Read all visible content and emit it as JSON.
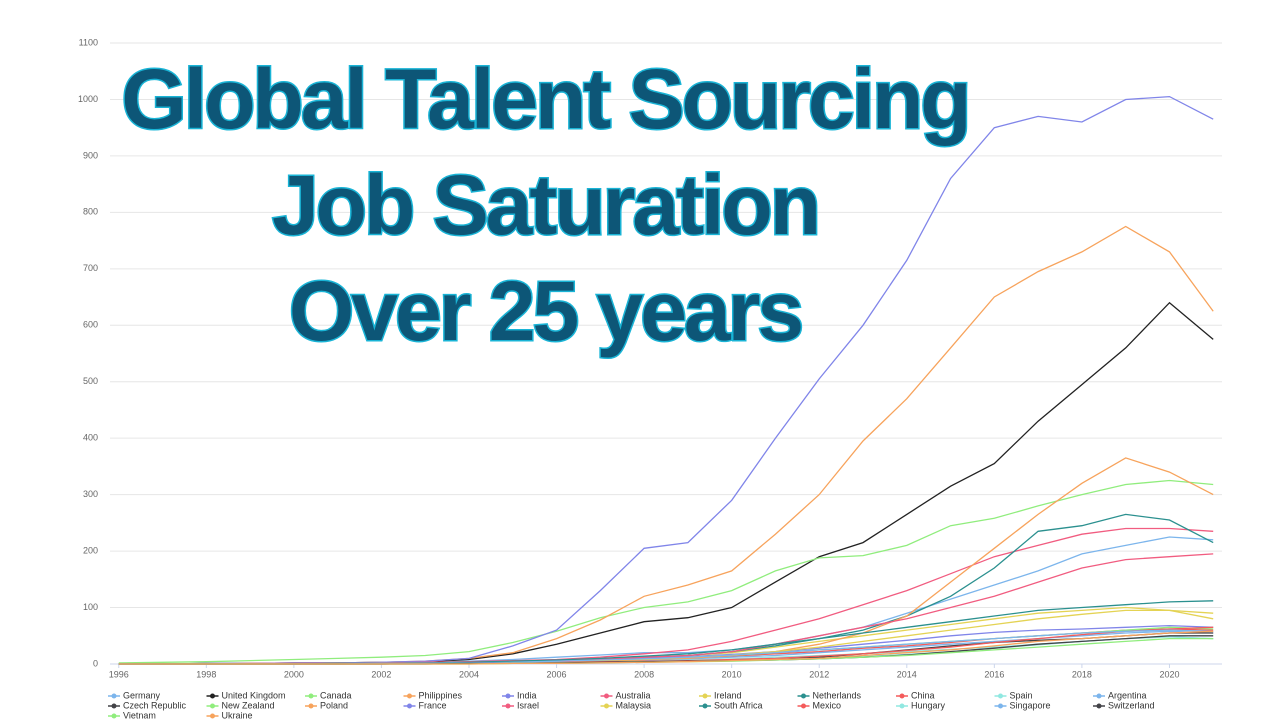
{
  "chart_data": {
    "type": "line",
    "title_lines": [
      "Global Talent Sourcing",
      "Job Saturation",
      "Over 25 years"
    ],
    "x": [
      1996,
      1997,
      1998,
      1999,
      2000,
      2001,
      2002,
      2003,
      2004,
      2005,
      2006,
      2007,
      2008,
      2009,
      2010,
      2011,
      2012,
      2013,
      2014,
      2015,
      2016,
      2017,
      2018,
      2019,
      2020,
      2021
    ],
    "xlim": [
      1995.8,
      2021.2
    ],
    "xticks": [
      1996,
      1998,
      2000,
      2002,
      2004,
      2006,
      2008,
      2010,
      2012,
      2014,
      2016,
      2018,
      2020
    ],
    "ylim": [
      0,
      1100
    ],
    "yticks": [
      0,
      100,
      200,
      300,
      400,
      500,
      600,
      700,
      800,
      900,
      1000,
      1100
    ],
    "grid": true,
    "series": [
      {
        "name": "Germany",
        "color": "#7cb5ec",
        "values": [
          0,
          0,
          0,
          0,
          1,
          1,
          2,
          3,
          5,
          8,
          12,
          16,
          20,
          20,
          25,
          35,
          50,
          65,
          90,
          115,
          140,
          165,
          195,
          210,
          225,
          220
        ]
      },
      {
        "name": "United Kingdom",
        "color": "#222222",
        "values": [
          0,
          0,
          1,
          1,
          2,
          2,
          3,
          4,
          8,
          18,
          35,
          55,
          75,
          82,
          100,
          145,
          190,
          215,
          265,
          315,
          355,
          430,
          495,
          560,
          640,
          575
        ]
      },
      {
        "name": "Canada",
        "color": "#90ed7d",
        "values": [
          2,
          3,
          4,
          6,
          8,
          10,
          12,
          15,
          22,
          38,
          58,
          82,
          100,
          110,
          130,
          165,
          188,
          192,
          210,
          245,
          258,
          280,
          300,
          318,
          325,
          318
        ]
      },
      {
        "name": "Philippines",
        "color": "#f7a35c",
        "values": [
          0,
          0,
          0,
          1,
          1,
          2,
          3,
          5,
          10,
          20,
          45,
          78,
          120,
          140,
          165,
          230,
          300,
          395,
          470,
          560,
          650,
          695,
          730,
          775,
          730,
          625
        ]
      },
      {
        "name": "India",
        "color": "#8085e9",
        "values": [
          0,
          0,
          1,
          1,
          2,
          2,
          3,
          5,
          10,
          32,
          60,
          130,
          205,
          215,
          290,
          400,
          505,
          600,
          715,
          860,
          950,
          970,
          960,
          1000,
          1005,
          965
        ]
      },
      {
        "name": "Australia",
        "color": "#f15c80",
        "values": [
          0,
          0,
          0,
          1,
          1,
          1,
          2,
          3,
          4,
          6,
          8,
          12,
          18,
          25,
          40,
          60,
          80,
          105,
          130,
          160,
          190,
          210,
          230,
          240,
          240,
          235
        ]
      },
      {
        "name": "Ireland",
        "color": "#e4d354",
        "values": [
          0,
          0,
          0,
          0,
          0,
          1,
          1,
          2,
          3,
          4,
          6,
          8,
          10,
          15,
          20,
          30,
          40,
          50,
          60,
          70,
          80,
          90,
          95,
          100,
          95,
          80
        ]
      },
      {
        "name": "Netherlands",
        "color": "#2b908f",
        "values": [
          0,
          0,
          0,
          0,
          0,
          1,
          1,
          2,
          3,
          4,
          6,
          8,
          12,
          15,
          22,
          32,
          45,
          60,
          85,
          120,
          170,
          235,
          245,
          265,
          255,
          215
        ]
      },
      {
        "name": "China",
        "color": "#f45b5b",
        "values": [
          0,
          0,
          0,
          0,
          0,
          0,
          1,
          1,
          2,
          3,
          4,
          5,
          7,
          10,
          14,
          18,
          22,
          28,
          32,
          38,
          45,
          50,
          55,
          60,
          62,
          60
        ]
      },
      {
        "name": "Spain",
        "color": "#91e8e1",
        "values": [
          0,
          0,
          0,
          0,
          0,
          0,
          0,
          1,
          1,
          2,
          3,
          4,
          5,
          7,
          9,
          12,
          15,
          18,
          22,
          26,
          30,
          35,
          40,
          45,
          48,
          45
        ]
      },
      {
        "name": "Argentina",
        "color": "#7cb5ec",
        "values": [
          0,
          0,
          0,
          0,
          0,
          0,
          1,
          1,
          2,
          3,
          4,
          5,
          7,
          9,
          12,
          15,
          20,
          25,
          30,
          35,
          40,
          45,
          50,
          55,
          58,
          55
        ]
      },
      {
        "name": "Czech Republic",
        "color": "#434348",
        "values": [
          0,
          0,
          0,
          0,
          0,
          0,
          0,
          1,
          1,
          1,
          2,
          3,
          4,
          5,
          6,
          8,
          12,
          18,
          25,
          32,
          38,
          42,
          45,
          50,
          55,
          55
        ]
      },
      {
        "name": "New Zealand",
        "color": "#90ed7d",
        "values": [
          0,
          0,
          0,
          0,
          0,
          1,
          1,
          2,
          3,
          4,
          5,
          7,
          9,
          12,
          15,
          20,
          25,
          30,
          35,
          40,
          45,
          50,
          55,
          60,
          65,
          62
        ]
      },
      {
        "name": "Poland",
        "color": "#f7a35c",
        "values": [
          0,
          0,
          0,
          0,
          0,
          0,
          0,
          1,
          1,
          2,
          3,
          5,
          8,
          10,
          15,
          22,
          35,
          55,
          85,
          145,
          205,
          265,
          320,
          365,
          340,
          300
        ]
      },
      {
        "name": "France",
        "color": "#8085e9",
        "values": [
          0,
          0,
          0,
          0,
          0,
          1,
          1,
          2,
          3,
          4,
          6,
          8,
          10,
          13,
          17,
          22,
          28,
          35,
          42,
          50,
          56,
          60,
          62,
          65,
          68,
          65
        ]
      },
      {
        "name": "Israel",
        "color": "#f15c80",
        "values": [
          0,
          0,
          0,
          0,
          0,
          1,
          1,
          2,
          3,
          4,
          6,
          8,
          12,
          15,
          22,
          35,
          50,
          65,
          80,
          100,
          120,
          145,
          170,
          185,
          190,
          195
        ]
      },
      {
        "name": "Malaysia",
        "color": "#e4d354",
        "values": [
          0,
          0,
          0,
          0,
          0,
          0,
          1,
          1,
          2,
          3,
          4,
          6,
          8,
          12,
          16,
          22,
          30,
          40,
          50,
          60,
          70,
          80,
          88,
          95,
          95,
          90
        ]
      },
      {
        "name": "South Africa",
        "color": "#2b908f",
        "values": [
          0,
          0,
          0,
          0,
          0,
          1,
          1,
          2,
          3,
          5,
          7,
          10,
          14,
          18,
          25,
          35,
          45,
          55,
          65,
          75,
          85,
          95,
          100,
          105,
          110,
          112
        ]
      },
      {
        "name": "Mexico",
        "color": "#f45b5b",
        "values": [
          0,
          0,
          0,
          0,
          0,
          0,
          0,
          1,
          1,
          2,
          3,
          4,
          5,
          6,
          8,
          10,
          14,
          18,
          24,
          30,
          38,
          45,
          52,
          58,
          62,
          65
        ]
      },
      {
        "name": "Hungary",
        "color": "#91e8e1",
        "values": [
          0,
          0,
          0,
          0,
          0,
          0,
          0,
          0,
          1,
          1,
          2,
          3,
          4,
          5,
          6,
          8,
          10,
          13,
          17,
          22,
          28,
          34,
          40,
          45,
          48,
          45
        ]
      },
      {
        "name": "Singapore",
        "color": "#7cb5ec",
        "values": [
          0,
          0,
          0,
          0,
          0,
          0,
          1,
          1,
          2,
          3,
          5,
          7,
          9,
          12,
          16,
          20,
          25,
          30,
          35,
          40,
          45,
          50,
          55,
          58,
          60,
          58
        ]
      },
      {
        "name": "Switzerland",
        "color": "#434348",
        "values": [
          0,
          0,
          0,
          0,
          0,
          0,
          0,
          0,
          1,
          1,
          2,
          3,
          4,
          5,
          6,
          7,
          9,
          12,
          16,
          22,
          28,
          35,
          40,
          45,
          50,
          50
        ]
      },
      {
        "name": "Vietnam",
        "color": "#90ed7d",
        "values": [
          0,
          0,
          0,
          0,
          0,
          0,
          0,
          0,
          0,
          1,
          1,
          2,
          3,
          4,
          5,
          7,
          9,
          12,
          15,
          20,
          25,
          30,
          35,
          40,
          45,
          45
        ]
      },
      {
        "name": "Ukraine",
        "color": "#f7a35c",
        "values": [
          0,
          0,
          0,
          0,
          0,
          0,
          0,
          0,
          0,
          1,
          1,
          2,
          3,
          4,
          6,
          8,
          10,
          15,
          20,
          25,
          32,
          40,
          45,
          50,
          55,
          58
        ]
      }
    ]
  }
}
